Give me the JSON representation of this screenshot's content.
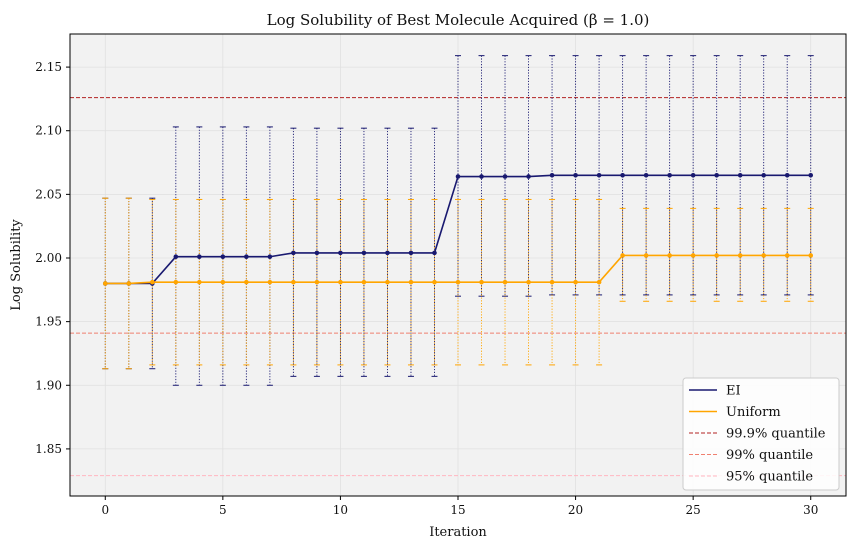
{
  "chart_data": {
    "type": "line",
    "title": "Log Solubility of Best Molecule Acquired (β = 1.0)",
    "xlabel": "Iteration",
    "ylabel": "Log Solubility",
    "xlim": [
      -1.5,
      31.5
    ],
    "ylim": [
      1.813,
      2.176
    ],
    "xticks": [
      0,
      5,
      10,
      15,
      20,
      25,
      30
    ],
    "xtick_labels": [
      "0",
      "5",
      "10",
      "15",
      "20",
      "25",
      "30"
    ],
    "yticks": [
      1.85,
      1.9,
      1.95,
      2.0,
      2.05,
      2.1,
      2.15
    ],
    "ytick_labels": [
      "1.85",
      "1.90",
      "1.95",
      "2.00",
      "2.05",
      "2.10",
      "2.15"
    ],
    "grid": true,
    "legend_position": "lower-right",
    "x": [
      0,
      1,
      2,
      3,
      4,
      5,
      6,
      7,
      8,
      9,
      10,
      11,
      12,
      13,
      14,
      15,
      16,
      17,
      18,
      19,
      20,
      21,
      22,
      23,
      24,
      25,
      26,
      27,
      28,
      29,
      30
    ],
    "series": [
      {
        "name": "EI",
        "color": "#191970",
        "values": [
          1.98,
          1.98,
          1.98,
          2.001,
          2.001,
          2.001,
          2.001,
          2.001,
          2.004,
          2.004,
          2.004,
          2.004,
          2.004,
          2.004,
          2.004,
          2.064,
          2.064,
          2.064,
          2.064,
          2.065,
          2.065,
          2.065,
          2.065,
          2.065,
          2.065,
          2.065,
          2.065,
          2.065,
          2.065,
          2.065,
          2.065
        ],
        "upper": [
          2.047,
          2.047,
          2.047,
          2.103,
          2.103,
          2.103,
          2.103,
          2.103,
          2.102,
          2.102,
          2.102,
          2.102,
          2.102,
          2.102,
          2.102,
          2.159,
          2.159,
          2.159,
          2.159,
          2.159,
          2.159,
          2.159,
          2.159,
          2.159,
          2.159,
          2.159,
          2.159,
          2.159,
          2.159,
          2.159,
          2.159
        ],
        "lower": [
          1.913,
          1.913,
          1.913,
          1.9,
          1.9,
          1.9,
          1.9,
          1.9,
          1.907,
          1.907,
          1.907,
          1.907,
          1.907,
          1.907,
          1.907,
          1.97,
          1.97,
          1.97,
          1.97,
          1.971,
          1.971,
          1.971,
          1.971,
          1.971,
          1.971,
          1.971,
          1.971,
          1.971,
          1.971,
          1.971,
          1.971
        ]
      },
      {
        "name": "Uniform",
        "color": "#ffa500",
        "values": [
          1.98,
          1.98,
          1.981,
          1.981,
          1.981,
          1.981,
          1.981,
          1.981,
          1.981,
          1.981,
          1.981,
          1.981,
          1.981,
          1.981,
          1.981,
          1.981,
          1.981,
          1.981,
          1.981,
          1.981,
          1.981,
          1.981,
          2.002,
          2.002,
          2.002,
          2.002,
          2.002,
          2.002,
          2.002,
          2.002,
          2.002
        ],
        "upper": [
          2.047,
          2.047,
          2.046,
          2.046,
          2.046,
          2.046,
          2.046,
          2.046,
          2.046,
          2.046,
          2.046,
          2.046,
          2.046,
          2.046,
          2.046,
          2.046,
          2.046,
          2.046,
          2.046,
          2.046,
          2.046,
          2.046,
          2.039,
          2.039,
          2.039,
          2.039,
          2.039,
          2.039,
          2.039,
          2.039,
          2.039
        ],
        "lower": [
          1.913,
          1.913,
          1.916,
          1.916,
          1.916,
          1.916,
          1.916,
          1.916,
          1.916,
          1.916,
          1.916,
          1.916,
          1.916,
          1.916,
          1.916,
          1.916,
          1.916,
          1.916,
          1.916,
          1.916,
          1.916,
          1.916,
          1.966,
          1.966,
          1.966,
          1.966,
          1.966,
          1.966,
          1.966,
          1.966,
          1.966
        ]
      }
    ],
    "reference_lines": [
      {
        "name": "99.9% quantile",
        "value": 2.126,
        "color": "#b22222"
      },
      {
        "name": "99% quantile",
        "value": 1.941,
        "color": "#f08070"
      },
      {
        "name": "95% quantile",
        "value": 1.829,
        "color": "#ffb6c1"
      }
    ]
  }
}
